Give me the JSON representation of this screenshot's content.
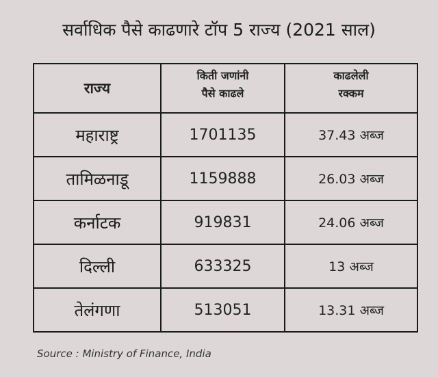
{
  "title": "सर्वाधिक पैसे काढणारे टॉप 5 राज्य (2021 साल)",
  "table": {
    "headers": {
      "state": "राज्य",
      "count_line1": "किती जणांनी",
      "count_line2": "पैसे काढले",
      "amount_line1": "काढलेली",
      "amount_line2": "रक्कम"
    },
    "rows": [
      {
        "state": "महाराष्ट्र",
        "count": "1701135",
        "amount": "37.43 अब्ज"
      },
      {
        "state": "तामिळनाडू",
        "count": "1159888",
        "amount": "26.03 अब्ज"
      },
      {
        "state": "कर्नाटक",
        "count": "919831",
        "amount": "24.06 अब्ज"
      },
      {
        "state": "दिल्ली",
        "count": "633325",
        "amount": "13 अब्ज"
      },
      {
        "state": "तेलंगणा",
        "count": "513051",
        "amount": "13.31 अब्ज"
      }
    ]
  },
  "source": "Source : Ministry of Finance, India",
  "colors": {
    "background": "#ddd7d7",
    "text": "#1e1e1e",
    "border": "#1a1a1a"
  }
}
